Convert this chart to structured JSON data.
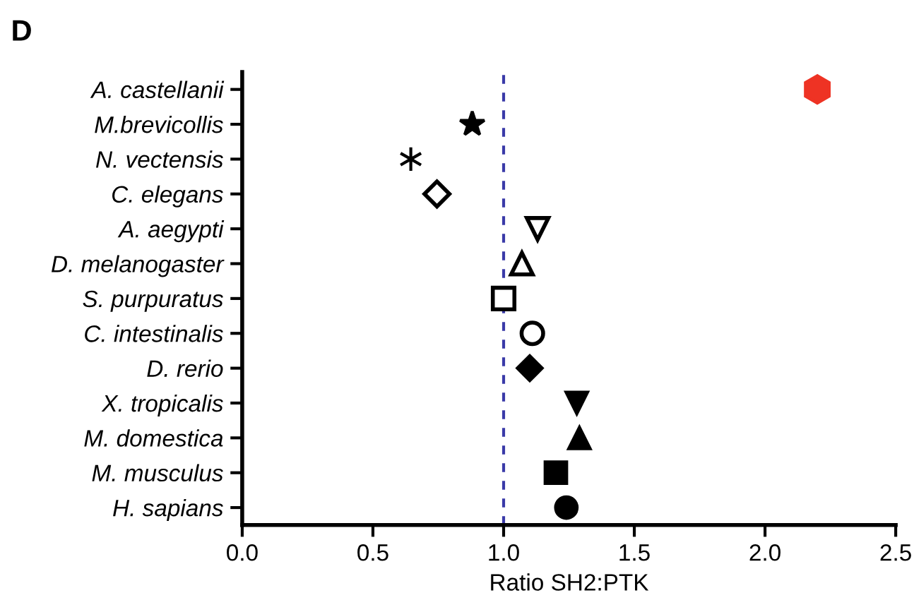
{
  "chart_data": {
    "type": "scatter",
    "title": "D",
    "xlabel": "Ratio SH2:PTK",
    "orientation": "horizontal",
    "categories": [
      "A. castellanii",
      "M.brevicollis",
      "N. vectensis",
      "C. elegans",
      "A. aegypti",
      "D. melanogaster",
      "S. purpuratus",
      "C. intestinalis",
      "D. rerio",
      "X. tropicalis",
      "M. domestica",
      "M. musculus",
      "H. sapians"
    ],
    "xlim": [
      0,
      2.5
    ],
    "xticks": [
      {
        "value": 0,
        "label": "0.0"
      },
      0.5,
      {
        "value": 1,
        "label": "1.0"
      },
      1.5,
      {
        "value": 2,
        "label": "2.0"
      },
      2.5
    ],
    "grid": false,
    "ref_lines": [
      {
        "axis": "x",
        "value": 1,
        "color": "#3a3aa8",
        "line_style": "dashed"
      }
    ],
    "series": [
      {
        "color": "#ee3324",
        "values": [
          2.2,
          null,
          null,
          null,
          null,
          null,
          null,
          null,
          null,
          null,
          null,
          null,
          null
        ]
      },
      {
        "color": "#000000",
        "marker": "star",
        "values": [
          null,
          0.88,
          null,
          null,
          null,
          null,
          null,
          null,
          null,
          null,
          null,
          null,
          null
        ]
      },
      {
        "color": "#000000",
        "marker": "cross",
        "values": [
          null,
          null,
          0.645,
          null,
          null,
          null,
          null,
          null,
          null,
          null,
          null,
          null,
          null
        ]
      },
      {
        "color": "#000000",
        "marker": "diamond-open",
        "values": [
          null,
          null,
          null,
          0.745,
          null,
          null,
          null,
          null,
          null,
          null,
          null,
          null,
          null
        ]
      },
      {
        "color": "#000000",
        "marker": "triangle-down-open",
        "values": [
          null,
          null,
          null,
          null,
          1.13,
          null,
          null,
          null,
          null,
          null,
          null,
          null,
          null
        ]
      },
      {
        "color": "#000000",
        "marker": "triangle-open",
        "values": [
          null,
          null,
          null,
          null,
          null,
          1.07,
          null,
          null,
          null,
          null,
          null,
          null,
          null
        ]
      },
      {
        "color": "#000000",
        "marker": "square-open",
        "values": [
          null,
          null,
          null,
          null,
          null,
          null,
          1.0,
          null,
          null,
          null,
          null,
          null,
          null
        ]
      },
      {
        "color": "#000000",
        "marker": "circle-open",
        "values": [
          null,
          null,
          null,
          null,
          null,
          null,
          null,
          1.11,
          null,
          null,
          null,
          null,
          null
        ]
      },
      {
        "color": "#000000",
        "marker": "diamond",
        "values": [
          null,
          null,
          null,
          null,
          null,
          null,
          null,
          null,
          1.1,
          null,
          null,
          null,
          null
        ]
      },
      {
        "color": "#000000",
        "marker": "triangle-down",
        "values": [
          null,
          null,
          null,
          null,
          null,
          null,
          null,
          null,
          null,
          1.28,
          null,
          null,
          null
        ]
      },
      {
        "color": "#000000",
        "marker": "triangle",
        "values": [
          null,
          null,
          null,
          null,
          null,
          null,
          null,
          null,
          null,
          null,
          1.29,
          null,
          null
        ]
      },
      {
        "color": "#000000",
        "marker": "square",
        "values": [
          null,
          null,
          null,
          null,
          null,
          null,
          null,
          null,
          null,
          null,
          null,
          1.2,
          null
        ]
      },
      {
        "color": "#000000",
        "marker": "circle",
        "values": [
          null,
          null,
          null,
          null,
          null,
          null,
          null,
          null,
          null,
          null,
          null,
          null,
          1.24
        ]
      }
    ]
  }
}
